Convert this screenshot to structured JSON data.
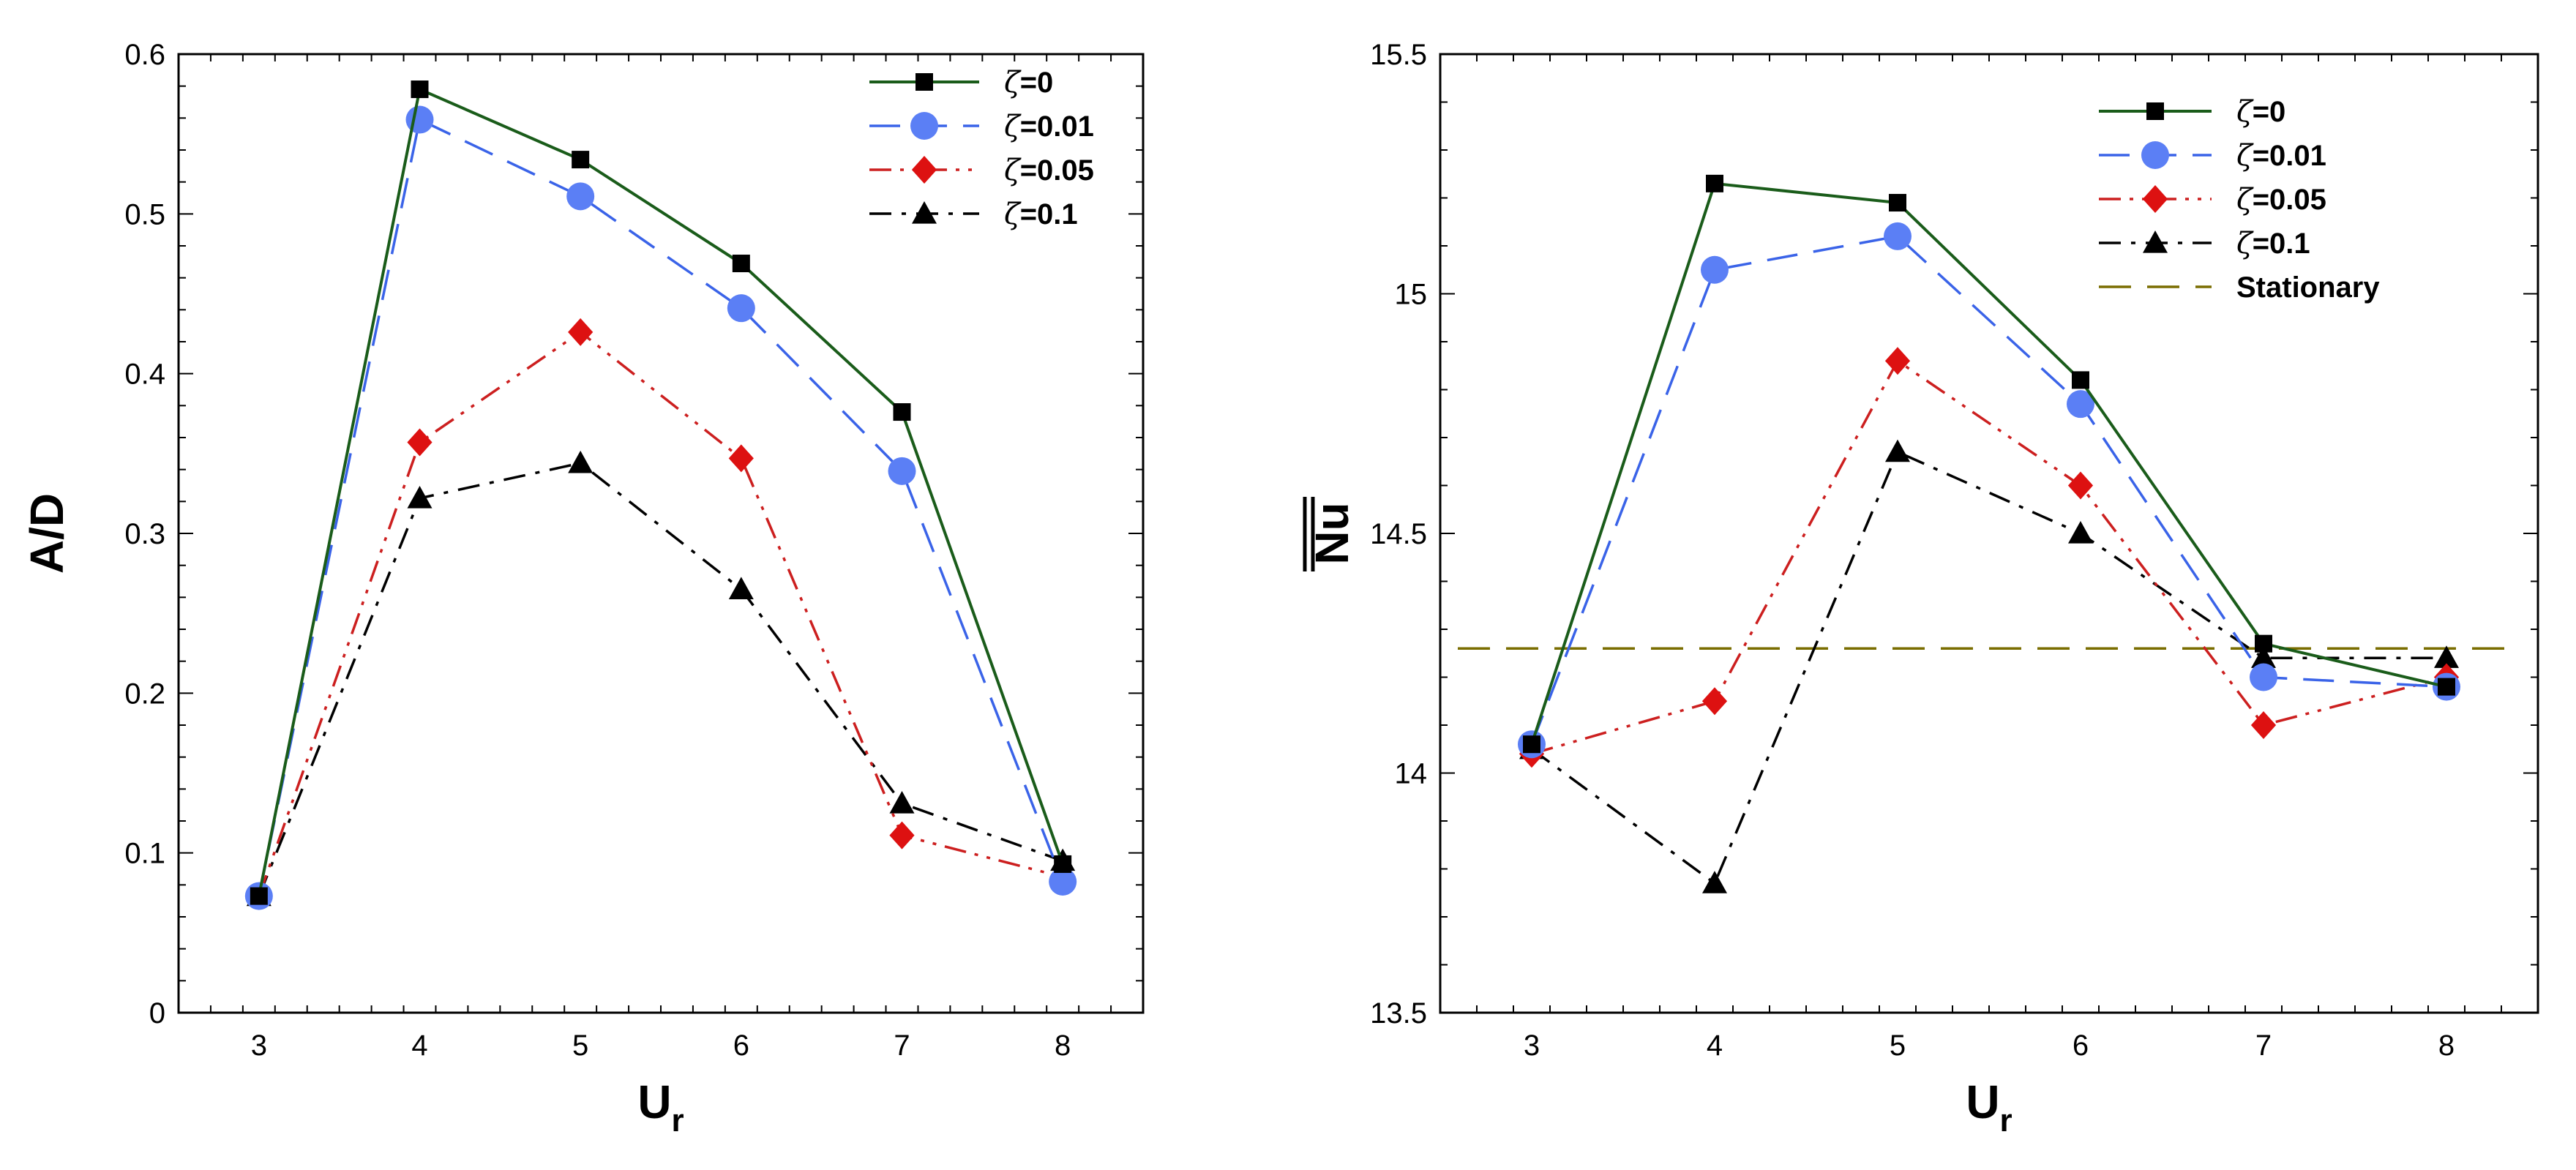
{
  "chart_data": [
    {
      "type": "line",
      "x": [
        3,
        4,
        5,
        6,
        7,
        8
      ],
      "xlabel": "U",
      "xlabel_sub": "r",
      "ylabel": "A/D",
      "ylabel_overline": false,
      "xlim": [
        2.5,
        8.5
      ],
      "ylim": [
        0,
        0.6
      ],
      "xticks": [
        3,
        4,
        5,
        6,
        7,
        8
      ],
      "yticks": [
        0,
        0.1,
        0.2,
        0.3,
        0.4,
        0.5,
        0.6
      ],
      "ytick_labels": [
        "0",
        "0.1",
        "0.2",
        "0.3",
        "0.4",
        "0.5",
        "0.6"
      ],
      "grid": false,
      "legend_position": "top-right",
      "series": [
        {
          "key": "z0",
          "name_prefix": "ζ",
          "name_value": "=0",
          "values": [
            0.073,
            0.578,
            0.534,
            0.469,
            0.376,
            0.093
          ],
          "color": "#1a5c1a",
          "dash": "solid",
          "marker": "square"
        },
        {
          "key": "z001",
          "name_prefix": "ζ",
          "name_value": "=0.01",
          "values": [
            0.073,
            0.559,
            0.511,
            0.441,
            0.339,
            0.082
          ],
          "color": "#3a63e8",
          "dash": "dashed",
          "marker": "circle",
          "marker_color": "#5b7ff5"
        },
        {
          "key": "z005",
          "name_prefix": "ζ",
          "name_value": "=0.05",
          "values": [
            0.073,
            0.357,
            0.426,
            0.347,
            0.111,
            0.085
          ],
          "color": "#cc1f1f",
          "dash": "dash-dot-dot",
          "marker": "diamond",
          "marker_color": "#dd1111"
        },
        {
          "key": "z01",
          "name_prefix": "ζ",
          "name_value": "=0.1",
          "values": [
            0.073,
            0.322,
            0.344,
            0.265,
            0.131,
            0.095
          ],
          "color": "#000000",
          "dash": "dash-dot",
          "marker": "triangle"
        }
      ]
    },
    {
      "type": "line",
      "x": [
        3,
        4,
        5,
        6,
        7,
        8
      ],
      "xlabel": "U",
      "xlabel_sub": "r",
      "ylabel": "Nu",
      "ylabel_overline": true,
      "xlim": [
        2.5,
        8.5
      ],
      "ylim": [
        13.5,
        15.5
      ],
      "xticks": [
        3,
        4,
        5,
        6,
        7,
        8
      ],
      "yticks": [
        13.5,
        14,
        14.5,
        15,
        15.5
      ],
      "ytick_labels": [
        "13.5",
        "14",
        "14.5",
        "15",
        "15.5"
      ],
      "grid": false,
      "legend_position": "top-right",
      "series": [
        {
          "key": "z0",
          "name_prefix": "ζ",
          "name_value": "=0",
          "values": [
            14.06,
            15.23,
            15.19,
            14.82,
            14.27,
            14.18
          ],
          "color": "#1a5c1a",
          "dash": "solid",
          "marker": "square"
        },
        {
          "key": "z001",
          "name_prefix": "ζ",
          "name_value": "=0.01",
          "values": [
            14.06,
            15.05,
            15.12,
            14.77,
            14.2,
            14.18
          ],
          "color": "#3a63e8",
          "dash": "dashed",
          "marker": "circle",
          "marker_color": "#5b7ff5"
        },
        {
          "key": "z005",
          "name_prefix": "ζ",
          "name_value": "=0.05",
          "values": [
            14.04,
            14.15,
            14.86,
            14.6,
            14.1,
            14.2
          ],
          "color": "#cc1f1f",
          "dash": "dash-dot-dot",
          "marker": "diamond",
          "marker_color": "#dd1111"
        },
        {
          "key": "z01",
          "name_prefix": "ζ",
          "name_value": "=0.1",
          "values": [
            14.05,
            13.77,
            14.67,
            14.5,
            14.24,
            14.24
          ],
          "color": "#000000",
          "dash": "dash-dot",
          "marker": "triangle"
        },
        {
          "key": "stationary",
          "name_prefix": "",
          "name_value": "Stationary",
          "values": [
            14.26,
            14.26,
            14.26,
            14.26,
            14.26,
            14.26
          ],
          "color": "#7a6d00",
          "dash": "long-dash",
          "marker": "none",
          "span": "full"
        }
      ]
    }
  ]
}
